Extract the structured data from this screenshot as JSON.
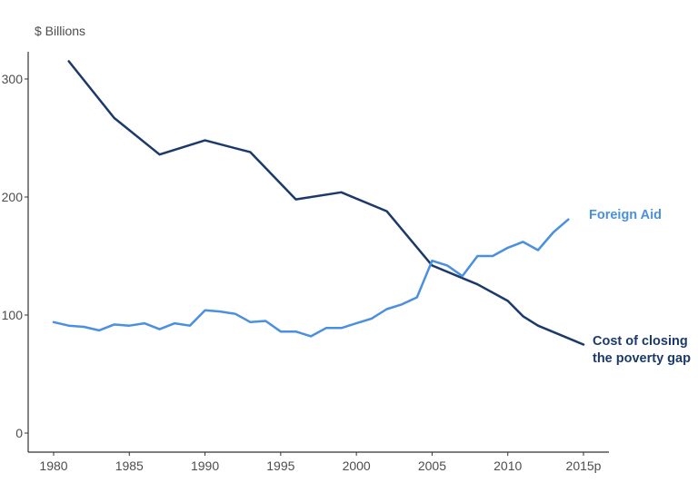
{
  "chart_data": {
    "type": "line",
    "ylabel": "$ Billions",
    "xlim": [
      1980,
      2015
    ],
    "ylim": [
      0,
      320
    ],
    "x_ticks": [
      {
        "x": 1980,
        "label": "1980"
      },
      {
        "x": 1985,
        "label": "1985"
      },
      {
        "x": 1990,
        "label": "1990"
      },
      {
        "x": 1995,
        "label": "1995"
      },
      {
        "x": 2000,
        "label": "2000"
      },
      {
        "x": 2005,
        "label": "2005"
      },
      {
        "x": 2010,
        "label": "2010"
      },
      {
        "x": 2015,
        "label": "2015p"
      }
    ],
    "y_ticks": [
      0,
      100,
      200,
      300
    ],
    "grid": false,
    "series": [
      {
        "name": "Cost of closing the poverty gap",
        "label_lines": [
          "Cost of closing",
          "the poverty gap"
        ],
        "color": "#1b3a6b",
        "points": [
          [
            1981,
            315
          ],
          [
            1984,
            267
          ],
          [
            1987,
            236
          ],
          [
            1990,
            248
          ],
          [
            1993,
            238
          ],
          [
            1996,
            198
          ],
          [
            1999,
            204
          ],
          [
            2002,
            188
          ],
          [
            2005,
            142
          ],
          [
            2008,
            126
          ],
          [
            2010,
            112
          ],
          [
            2011,
            99
          ],
          [
            2012,
            91
          ],
          [
            2015,
            75
          ]
        ]
      },
      {
        "name": "Foreign Aid",
        "label_lines": [
          "Foreign Aid"
        ],
        "color": "#4a8fe0",
        "points": [
          [
            1980,
            94
          ],
          [
            1981,
            91
          ],
          [
            1982,
            90
          ],
          [
            1983,
            87
          ],
          [
            1984,
            92
          ],
          [
            1985,
            91
          ],
          [
            1986,
            93
          ],
          [
            1987,
            88
          ],
          [
            1988,
            93
          ],
          [
            1989,
            91
          ],
          [
            1990,
            104
          ],
          [
            1991,
            103
          ],
          [
            1992,
            101
          ],
          [
            1993,
            94
          ],
          [
            1994,
            95
          ],
          [
            1995,
            86
          ],
          [
            1996,
            86
          ],
          [
            1997,
            82
          ],
          [
            1998,
            89
          ],
          [
            1999,
            89
          ],
          [
            2000,
            93
          ],
          [
            2001,
            97
          ],
          [
            2002,
            105
          ],
          [
            2003,
            109
          ],
          [
            2004,
            115
          ],
          [
            2005,
            146
          ],
          [
            2006,
            142
          ],
          [
            2007,
            133
          ],
          [
            2008,
            150
          ],
          [
            2009,
            150
          ],
          [
            2010,
            157
          ],
          [
            2011,
            162
          ],
          [
            2012,
            155
          ],
          [
            2013,
            170
          ],
          [
            2014,
            181
          ]
        ]
      }
    ]
  }
}
